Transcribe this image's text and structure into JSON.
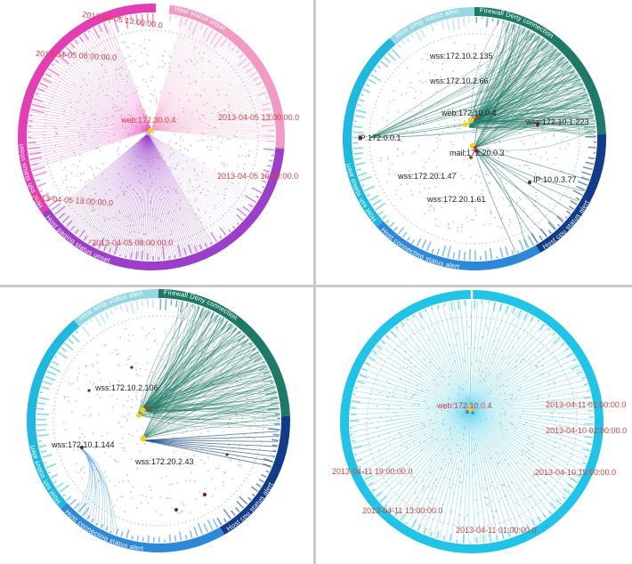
{
  "colors": {
    "divider": "#c9c9c9",
    "dot": "#c8c8c8",
    "ring_dotted": "#cccccc",
    "red_label": "#d94040",
    "node_yellow": "#f4cf1d",
    "node_dark": "#7a1e1e"
  },
  "panels": [
    {
      "id": "top-left",
      "center_label": "web:172.30.0.4",
      "center_label_color": "#d94040",
      "labels": [
        {
          "text": "2013-04-05 13:00:00.0"
        },
        {
          "text": "2013-04-05 08:00:00.0"
        },
        {
          "text": "2013-04-05 13:00:00.0"
        },
        {
          "text": "2013-04-05 10:00:00.0"
        },
        {
          "text": "2013-04-05 13:00:00.0"
        },
        {
          "text": "2013-04-05 08:00:00.0"
        }
      ],
      "segments": [
        {
          "label": "Host status unset",
          "color": "#f09ac4"
        },
        {
          "label": "Host paging status unset",
          "color": "#9b3fc9"
        },
        {
          "label": "Host ssh status unset",
          "color": "#e23fb5"
        }
      ]
    },
    {
      "id": "top-right",
      "labels": [
        {
          "text": "wss:172.10.2.135"
        },
        {
          "text": "wss:172.10.2.66"
        },
        {
          "text": "web:172.10.0.4"
        },
        {
          "text": "wss:172.10.1.223"
        },
        {
          "text": "IP:172.0.0.1"
        },
        {
          "text": "mail:172.20.0.3"
        },
        {
          "text": "IP:10.0.3.77"
        },
        {
          "text": "wss:172.20.1.47"
        },
        {
          "text": "wss:172.20.1.61"
        }
      ],
      "segments": [
        {
          "label": "Firewall Deny connection",
          "color": "#1e7a66"
        },
        {
          "label": "Host cpu status alert",
          "color": "#123c87"
        },
        {
          "label": "Host connecting status alert",
          "color": "#2d88d8"
        },
        {
          "label": "Host ssh status alert",
          "color": "#21b8dd"
        },
        {
          "label": "Host smtp status alert",
          "color": "#96d7e2"
        }
      ]
    },
    {
      "id": "bottom-left",
      "labels": [
        {
          "text": "wss:172.10.2.106"
        },
        {
          "text": "wss:172.10.1.144"
        },
        {
          "text": "wss:172.20.2.43"
        }
      ],
      "segments": [
        {
          "label": "Firewall Deny connection",
          "color": "#1e7a66"
        },
        {
          "label": "Host cpu status alert",
          "color": "#123c87"
        },
        {
          "label": "Host connecting status alert",
          "color": "#2d88d8"
        },
        {
          "label": "Host ssh status alert",
          "color": "#21b8dd"
        },
        {
          "label": "Host smtp status alert",
          "color": "#96d7e2"
        }
      ]
    },
    {
      "id": "bottom-right",
      "center_label": "web:172.10.0.4",
      "center_label_color": "#d94040",
      "labels": [
        {
          "text": "2013-04-11 01:00:00.0"
        },
        {
          "text": "2013-04-10 02:00:00.0"
        },
        {
          "text": "2013-04-10 19:00:00.0"
        },
        {
          "text": "2013-04-11 19:00:00.0"
        },
        {
          "text": "2013-04-11 13:00:00.0"
        },
        {
          "text": "2013-04-11 01:00:00.0"
        }
      ],
      "segments": [
        {
          "label": "",
          "color": "#21c4e6"
        }
      ]
    }
  ]
}
